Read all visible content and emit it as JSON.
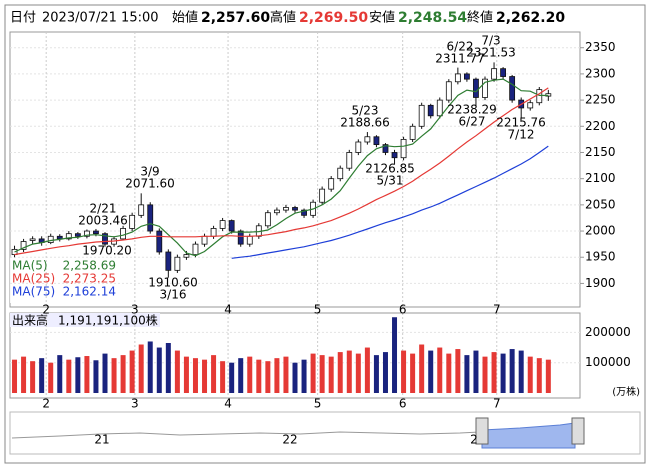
{
  "header": {
    "date_label": "日付",
    "date": "2023/07/21 15:00",
    "open_label": "始値",
    "open": "2,257.60",
    "high_label": "高値",
    "high": "2,269.50",
    "low_label": "安値",
    "low": "2,248.54",
    "close_label": "終値",
    "close": "2,262.20"
  },
  "chart_data": {
    "type": "candlestick",
    "ohlc": [
      [
        1955,
        1972,
        1950,
        1965
      ],
      [
        1965,
        1985,
        1960,
        1980
      ],
      [
        1982,
        1990,
        1975,
        1985
      ],
      [
        1985,
        1990,
        1972,
        1978
      ],
      [
        1978,
        1995,
        1975,
        1990
      ],
      [
        1990,
        1994,
        1980,
        1985
      ],
      [
        1985,
        2000,
        1982,
        1995
      ],
      [
        1995,
        1998,
        1985,
        1990
      ],
      [
        1990,
        2003,
        1986,
        2000
      ],
      [
        2000,
        2004,
        1990,
        1995
      ],
      [
        1995,
        1998,
        1970,
        1975
      ],
      [
        1975,
        1990,
        1970,
        1985
      ],
      [
        1985,
        2010,
        1982,
        2005
      ],
      [
        2005,
        2035,
        2000,
        2030
      ],
      [
        2030,
        2072,
        2025,
        2050
      ],
      [
        2050,
        2055,
        1995,
        2000
      ],
      [
        2000,
        2005,
        1955,
        1960
      ],
      [
        1960,
        1965,
        1911,
        1925
      ],
      [
        1925,
        1955,
        1920,
        1950
      ],
      [
        1950,
        1962,
        1945,
        1955
      ],
      [
        1955,
        1980,
        1950,
        1975
      ],
      [
        1975,
        1995,
        1970,
        1990
      ],
      [
        1990,
        2010,
        1985,
        2005
      ],
      [
        2005,
        2025,
        2000,
        2020
      ],
      [
        2020,
        2022,
        1995,
        2000
      ],
      [
        2000,
        2003,
        1970,
        1975
      ],
      [
        1975,
        1995,
        1970,
        1990
      ],
      [
        1990,
        2015,
        1985,
        2010
      ],
      [
        2010,
        2040,
        2005,
        2035
      ],
      [
        2035,
        2045,
        2030,
        2040
      ],
      [
        2040,
        2050,
        2035,
        2045
      ],
      [
        2045,
        2048,
        2035,
        2040
      ],
      [
        2040,
        2043,
        2025,
        2030
      ],
      [
        2030,
        2060,
        2025,
        2055
      ],
      [
        2055,
        2085,
        2050,
        2080
      ],
      [
        2080,
        2105,
        2075,
        2100
      ],
      [
        2100,
        2125,
        2095,
        2120
      ],
      [
        2120,
        2155,
        2115,
        2150
      ],
      [
        2150,
        2175,
        2145,
        2170
      ],
      [
        2170,
        2189,
        2165,
        2180
      ],
      [
        2180,
        2183,
        2160,
        2165
      ],
      [
        2165,
        2168,
        2145,
        2150
      ],
      [
        2150,
        2155,
        2127,
        2140
      ],
      [
        2140,
        2180,
        2135,
        2175
      ],
      [
        2175,
        2205,
        2170,
        2200
      ],
      [
        2200,
        2245,
        2195,
        2240
      ],
      [
        2240,
        2243,
        2215,
        2220
      ],
      [
        2220,
        2255,
        2215,
        2250
      ],
      [
        2250,
        2290,
        2245,
        2285
      ],
      [
        2285,
        2312,
        2280,
        2300
      ],
      [
        2300,
        2303,
        2285,
        2290
      ],
      [
        2290,
        2293,
        2238,
        2255
      ],
      [
        2255,
        2295,
        2250,
        2290
      ],
      [
        2290,
        2322,
        2285,
        2310
      ],
      [
        2310,
        2313,
        2290,
        2295
      ],
      [
        2295,
        2298,
        2245,
        2250
      ],
      [
        2250,
        2255,
        2216,
        2235
      ],
      [
        2235,
        2250,
        2230,
        2245
      ],
      [
        2245,
        2275,
        2240,
        2270
      ],
      [
        2257.6,
        2269.5,
        2248.54,
        2262.2
      ]
    ],
    "up_color": "#ffffff",
    "down_color": "#1a237e",
    "ylim": [
      1855,
      2380
    ],
    "yticks": [
      1900,
      1950,
      2000,
      2050,
      2100,
      2150,
      2200,
      2250,
      2300,
      2350
    ],
    "xlim": [
      -0.5,
      62.5
    ],
    "xticks": [
      {
        "value": 3.5,
        "label": "2"
      },
      {
        "value": 13.3,
        "label": "3"
      },
      {
        "value": 23.6,
        "label": "4"
      },
      {
        "value": 33.5,
        "label": "5"
      },
      {
        "value": 42.9,
        "label": "6"
      },
      {
        "value": 53.3,
        "label": "7"
      }
    ],
    "series": [
      {
        "name": "MA(5)",
        "color": "#2e7d32",
        "value_label": "2,258.69",
        "values": [
          1960,
          1968,
          1975,
          1978,
          1982,
          1984,
          1987,
          1988,
          1992,
          1993,
          1991,
          1989,
          1992,
          1998,
          2009,
          2014,
          2009,
          1993,
          1977,
          1958,
          1953,
          1961,
          1975,
          1989,
          1998,
          1998,
          1998,
          1999,
          2002,
          2012,
          2024,
          2034,
          2038,
          2042,
          2050,
          2061,
          2077,
          2101,
          2124,
          2144,
          2157,
          2163,
          2161,
          2162,
          2166,
          2181,
          2195,
          2217,
          2239,
          2259,
          2269,
          2266,
          2284,
          2288,
          2290,
          2280,
          2268,
          2267,
          2259,
          2258.69
        ]
      },
      {
        "name": "MA(25)",
        "color": "#e53935",
        "value_label": "2,273.25",
        "values": [
          1955,
          1958,
          1961,
          1964,
          1967,
          1970,
          1972,
          1975,
          1977,
          1979,
          1980,
          1981,
          1983,
          1985,
          1988,
          1990,
          1990,
          1989,
          1989,
          1989,
          1989,
          1990,
          1990,
          1991,
          1991,
          1990,
          1990,
          1991,
          1993,
          1996,
          1999,
          2003,
          2006,
          2010,
          2015,
          2020,
          2027,
          2034,
          2042,
          2051,
          2060,
          2068,
          2076,
          2085,
          2095,
          2107,
          2118,
          2130,
          2143,
          2157,
          2170,
          2182,
          2195,
          2208,
          2220,
          2232,
          2242,
          2252,
          2262,
          2273.25
        ]
      },
      {
        "name": "MA(75)",
        "color": "#1e3fd8",
        "value_label": "2,162.14",
        "values": [
          null,
          null,
          null,
          null,
          null,
          null,
          null,
          null,
          null,
          null,
          null,
          null,
          null,
          null,
          null,
          null,
          null,
          null,
          null,
          null,
          null,
          null,
          null,
          null,
          1948,
          1950,
          1952,
          1955,
          1958,
          1961,
          1964,
          1967,
          1970,
          1974,
          1978,
          1982,
          1987,
          1992,
          1998,
          2004,
          2010,
          2016,
          2021,
          2027,
          2033,
          2040,
          2046,
          2053,
          2061,
          2069,
          2077,
          2085,
          2093,
          2101,
          2110,
          2119,
          2128,
          2138,
          2150,
          2162.14
        ]
      }
    ],
    "annotations": [
      {
        "date": "2/21",
        "value": "2003.46"
      },
      {
        "value": "1970.20"
      },
      {
        "date": "3/9",
        "value": "2071.60"
      },
      {
        "date": "3/16",
        "value": "1910.60"
      },
      {
        "date": "5/23",
        "value": "2188.66"
      },
      {
        "date": "5/31",
        "value": "2126.85"
      },
      {
        "date": "6/22",
        "value": "2311.77"
      },
      {
        "date": "7/3",
        "value": "2321.53"
      },
      {
        "date": "6/27",
        "value": "2238.29"
      },
      {
        "date": "7/12",
        "value": "2215.76"
      }
    ]
  },
  "volume": {
    "type": "bar",
    "label": "出来高",
    "total": "1,191,191,100株",
    "unit": "(万株)",
    "up_color": "#e53935",
    "down_color": "#1a237e",
    "values": [
      110000,
      120000,
      105000,
      115000,
      100000,
      125000,
      110000,
      118000,
      122000,
      108000,
      130000,
      115000,
      125000,
      140000,
      160000,
      170000,
      150000,
      165000,
      140000,
      120000,
      115000,
      110000,
      125000,
      105000,
      100000,
      115000,
      120000,
      110000,
      105000,
      115000,
      120000,
      100000,
      110000,
      130000,
      125000,
      120000,
      135000,
      140000,
      130000,
      150000,
      125000,
      135000,
      250000,
      140000,
      130000,
      160000,
      140000,
      150000,
      130000,
      145000,
      125000,
      140000,
      120000,
      135000,
      130000,
      145000,
      140000,
      120000,
      115000,
      110000
    ],
    "ylim": [
      0,
      264000
    ],
    "yticks": [
      100000,
      200000
    ]
  },
  "navigator": {
    "labels": [
      "21",
      "22",
      "2"
    ]
  }
}
